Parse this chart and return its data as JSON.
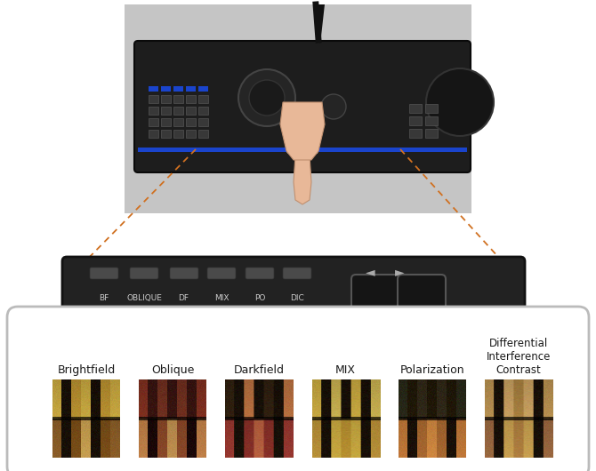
{
  "bg_color": "#ffffff",
  "labels": [
    "Brightfield",
    "Oblique",
    "Darkfield",
    "MIX",
    "Polarization",
    "Differential\nInterference\nContrast"
  ],
  "arrow_color": "#3a80c0",
  "dashed_color": "#d07020",
  "panel_bg": "#ffffff",
  "panel_border": "#bbbbbb",
  "label_fontsize": 8.5,
  "microscope_button_labels": [
    "BF",
    "OBLIQUE",
    "DF",
    "MIX",
    "PO",
    "DIC"
  ],
  "photo_bg": "#c8c8c8",
  "device_color": "#1a1a1a",
  "blue_stripe": "#2255bb",
  "panel_color": "#222222"
}
